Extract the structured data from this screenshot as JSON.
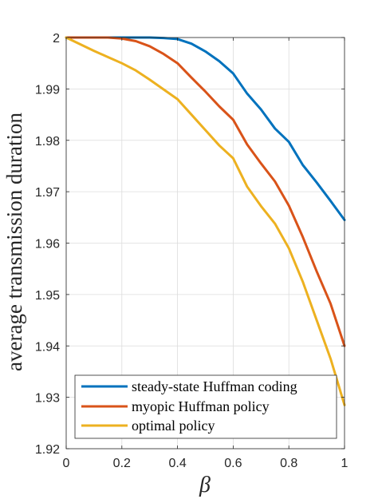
{
  "chart_data": {
    "type": "line",
    "title": "",
    "xlabel": "β",
    "ylabel": "average transmission duration",
    "xlim": [
      0,
      1
    ],
    "ylim": [
      1.92,
      2
    ],
    "xticks": [
      0,
      0.2,
      0.4,
      0.6,
      0.8,
      1
    ],
    "xtick_labels": [
      "0",
      "0.2",
      "0.4",
      "0.6",
      "0.8",
      "1"
    ],
    "yticks": [
      1.92,
      1.93,
      1.94,
      1.95,
      1.96,
      1.97,
      1.98,
      1.99,
      2
    ],
    "ytick_labels": [
      "1.92",
      "1.93",
      "1.94",
      "1.95",
      "1.96",
      "1.97",
      "1.98",
      "1.99",
      "2"
    ],
    "grid": true,
    "legend_position": "bottom-left",
    "x": [
      0,
      0.05,
      0.1,
      0.15,
      0.2,
      0.25,
      0.3,
      0.35,
      0.4,
      0.45,
      0.5,
      0.55,
      0.6,
      0.65,
      0.7,
      0.75,
      0.8,
      0.85,
      0.9,
      0.95,
      1
    ],
    "series": [
      {
        "name": "steady-state Huffman coding",
        "color": "#0072BD",
        "values": [
          2.0,
          2.0,
          2.0,
          2.0,
          2.0,
          2.0,
          2.0,
          1.9999,
          1.9997,
          1.9988,
          1.9973,
          1.9954,
          1.993,
          1.9891,
          1.986,
          1.9823,
          1.9797,
          1.9752,
          1.9718,
          1.9682,
          1.9645
        ]
      },
      {
        "name": "myopic Huffman policy",
        "color": "#D95319",
        "values": [
          2.0,
          2.0,
          2.0,
          2.0,
          1.9998,
          1.9993,
          1.9983,
          1.9968,
          1.995,
          1.9922,
          1.9895,
          1.9866,
          1.984,
          1.9792,
          1.9755,
          1.972,
          1.9673,
          1.9612,
          1.9545,
          1.9482,
          1.94
        ]
      },
      {
        "name": "optimal policy",
        "color": "#EDB120",
        "values": [
          2.0,
          1.9987,
          1.9974,
          1.9962,
          1.995,
          1.9936,
          1.9918,
          1.9899,
          1.988,
          1.985,
          1.982,
          1.979,
          1.9765,
          1.971,
          1.9672,
          1.9638,
          1.959,
          1.9525,
          1.945,
          1.9375,
          1.9285
        ]
      }
    ]
  }
}
